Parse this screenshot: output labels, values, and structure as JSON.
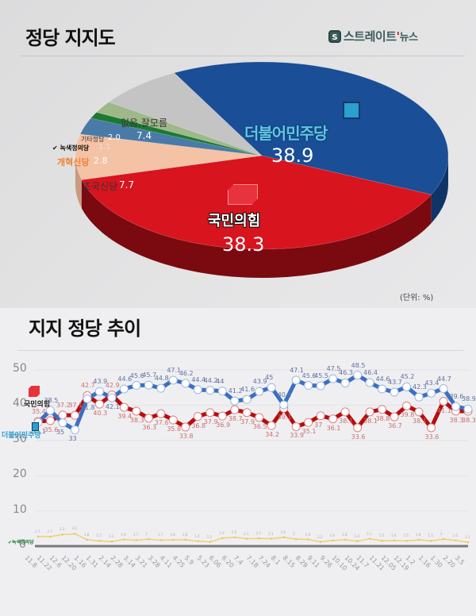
{
  "header": {
    "title": "정당 지지도",
    "logo_text": "스트레이트",
    "logo_tick": "'",
    "logo_sub": "뉴스",
    "logo_icon": "S"
  },
  "pie": {
    "unit": "(단위: %)",
    "slices": [
      {
        "name": "더불어민주당",
        "value": "38.9",
        "color": "#1a4e96"
      },
      {
        "name": "국민의힘",
        "value": "38.3",
        "color": "#d8141e"
      },
      {
        "name": "조국신당",
        "value": "7.7",
        "color": "#f4c2a4"
      },
      {
        "name": "개혁신당",
        "value": "2.8",
        "color": "#4a7aa8"
      },
      {
        "name": "녹색정의당",
        "value": "1.1",
        "color": "#1b7a32"
      },
      {
        "name": "기타정당",
        "value": "2.0",
        "color": "#9fb88a"
      },
      {
        "name": "없음,잘모름",
        "value": "7.4",
        "color": "#c4c4c4"
      }
    ]
  },
  "trend": {
    "title": "지지 정당 추이",
    "yticks": [
      "50",
      "40",
      "30",
      "20",
      "10",
      "0"
    ],
    "legend_dem": "더불어민주당",
    "legend_ppp": "국민의힘",
    "legend_green": "녹색정의당"
  },
  "chart_data": [
    {
      "type": "pie",
      "title": "정당 지지도",
      "unit": "%",
      "categories": [
        "더불어민주당",
        "국민의힘",
        "조국신당",
        "개혁신당",
        "녹색정의당",
        "기타정당",
        "없음,잘모름"
      ],
      "values": [
        38.9,
        38.3,
        7.7,
        2.8,
        1.1,
        2.0,
        7.4
      ]
    },
    {
      "type": "line",
      "title": "지지 정당 추이",
      "ylim": [
        0,
        50
      ],
      "yticks": [
        0,
        10,
        20,
        30,
        40,
        50
      ],
      "x": [
        "11.8",
        "11.22",
        "12.6",
        "12.20",
        "1.16",
        "1.31",
        "2.14",
        "2.28",
        "3.14",
        "3.21",
        "3.28",
        "4.11",
        "4.25",
        "5.9",
        "5.23",
        "6.06",
        "6.20",
        "7.4",
        "7.18",
        "7.24",
        "8.1",
        "8.15",
        "8.29",
        "9.11",
        "9.26",
        "10.10",
        "10.24",
        "11.7",
        "11.21",
        "12.05",
        "12.19",
        "1.2",
        "1.16",
        "1.30",
        "2.20",
        "3.5"
      ],
      "series": [
        {
          "name": "더불어민주당",
          "color": "#3a6fc4",
          "values": [
            35.1,
            38.5,
            35,
            33,
            41.8,
            43.9,
            42.1,
            44.6,
            45.6,
            45.7,
            44.8,
            47.1,
            46.2,
            44.4,
            44.2,
            44,
            41.2,
            41.6,
            43.9,
            45,
            40.1,
            47.1,
            45.6,
            45.5,
            47.5,
            46.3,
            48.5,
            46.4,
            44.6,
            43.7,
            45.2,
            42.3,
            43.4,
            44.7,
            39.6,
            38.9
          ]
        },
        {
          "name": "국민의힘",
          "color": "#b80c0c",
          "values": [
            35.4,
            35.6,
            37.2,
            37.1,
            42.7,
            40.3,
            42.9,
            39.4,
            38.3,
            36.3,
            37.6,
            35.8,
            33.8,
            36.8,
            37.9,
            36.9,
            38.7,
            37.9,
            36.5,
            34.2,
            39.1,
            33.9,
            35.1,
            37,
            36.1,
            38.1,
            33.6,
            38.1,
            38.8,
            36.7,
            39.8,
            38.1,
            33.6,
            41.1,
            38.3,
            38.3
          ]
        },
        {
          "name": "녹색정의당",
          "color": "#f0d070",
          "values": [
            2.7,
            2.7,
            3.3,
            3.5,
            1.8,
            1.5,
            1.3,
            1.9,
            1.7,
            2,
            1.7,
            1.8,
            1.8,
            1.4,
            1.2,
            2.3,
            2.5,
            2.1,
            2.2,
            2.1,
            2.5,
            2,
            1.9,
            1.2,
            1.6,
            1.8,
            1.4,
            2.1,
            1.5,
            1.6,
            1.5,
            1.8,
            1.5,
            2,
            1.6,
            1.1
          ]
        }
      ]
    }
  ]
}
